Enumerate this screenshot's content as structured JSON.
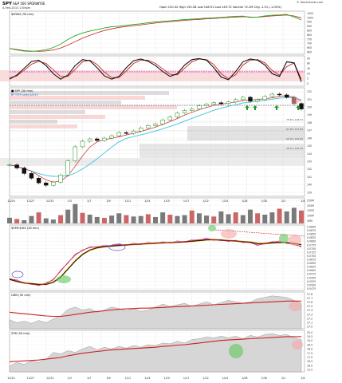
{
  "header": {
    "ticker": "SPY",
    "name": "S&P 500 SPDRs",
    "exchange": "NYSE",
    "date": "4-Feb-2013 2:06pm",
    "quote": "Open 150.32  High 150.58  Low 148.91  Last 149.72  Volume 72.2M  Chg -1.51 (-1.00%)",
    "credit": "© StockCharts.com"
  },
  "colors": {
    "price_up": "#1e8a1e",
    "price_down": "#111111",
    "ma_red": "#cc2222",
    "ma_cyan": "#3cc4dc",
    "ma_green": "#22aa22",
    "volume": "#7a7a7a",
    "volume_red": "#c66",
    "highlight_red": "#f4a7a7",
    "highlight_green": "#5cc85c",
    "highlight_blue": "#5555cc",
    "area_fill": "#d6d6d6",
    "zone_gray": "#cfcfcf",
    "zone_pink": "#f5c6c6"
  },
  "x_axis": {
    "labels": [
      "12/24",
      "12/27",
      "12/31",
      "1/3",
      "1/7",
      "1/9",
      "1/11",
      "1/14",
      "1/15",
      "1/17",
      "1/22",
      "1/24",
      "1/28",
      "1/30",
      "2/1",
      "2/4"
    ]
  },
  "chart_data": [
    {
      "type": "line",
      "panel": "$NYAD (30 min)",
      "ylim": [
        600,
        1050
      ],
      "tick_labels": [
        "1050",
        "1000",
        "950",
        "900",
        "850",
        "800",
        "750",
        "700",
        "650",
        "600"
      ],
      "series": [
        {
          "values": [
            640,
            622,
            608,
            606,
            612,
            625,
            652,
            690,
            745,
            790,
            822,
            845,
            862,
            880,
            895,
            902,
            912,
            922,
            930,
            942,
            952,
            958,
            965,
            972,
            980,
            985,
            990,
            996,
            1000,
            1005,
            1012,
            1018,
            1020,
            1005,
            1010,
            1022,
            1030,
            1034,
            1040,
            1010,
            975
          ]
        },
        {
          "values": [
            640,
            628,
            615,
            608,
            606,
            610,
            622,
            645,
            680,
            720,
            760,
            795,
            825,
            850,
            870,
            888,
            898,
            908,
            918,
            928,
            938,
            948,
            955,
            962,
            970,
            976,
            982,
            988,
            993,
            998,
            1004,
            1010,
            1014,
            1010,
            1008,
            1015,
            1022,
            1028,
            1032,
            1022,
            1000
          ]
        }
      ]
    },
    {
      "type": "line",
      "panel": "Stochastics",
      "ylim": [
        0,
        100
      ],
      "tick_labels": [
        "90",
        "80",
        "40",
        "20",
        "5",
        "0"
      ],
      "series": [
        {
          "values": [
            20,
            35,
            60,
            85,
            90,
            70,
            40,
            20,
            35,
            70,
            92,
            88,
            62,
            32,
            20,
            30,
            62,
            88,
            94,
            86,
            70,
            48,
            30,
            40,
            72,
            92,
            96,
            90,
            62,
            28,
            18,
            48,
            84,
            94,
            90,
            72,
            40,
            30,
            84,
            80,
            10
          ]
        },
        {
          "values": [
            25,
            32,
            52,
            75,
            86,
            78,
            54,
            30,
            30,
            56,
            84,
            90,
            74,
            46,
            26,
            26,
            50,
            78,
            90,
            90,
            78,
            58,
            38,
            36,
            60,
            84,
            94,
            92,
            74,
            40,
            22,
            36,
            72,
            90,
            92,
            80,
            52,
            34,
            66,
            80,
            20
          ]
        }
      ]
    },
    {
      "type": "candlestick",
      "panel": "SPY (30 min)",
      "legend": "■ SPY (30 min)",
      "legend2": "BY TSTV since 4/4/13",
      "ylim": [
        139,
        152
      ],
      "tick_labels": [
        "152",
        "151",
        "150",
        "149",
        "148",
        "147",
        "146",
        "145",
        "144",
        "143",
        "142",
        "141",
        "140",
        "139"
      ],
      "level_labels": [
        "78.6% 148.52",
        "61.8% 147.64",
        "50.0% 146.95",
        "38.2% 146.28"
      ],
      "values": [
        142.6,
        142.2,
        141.5,
        140.9,
        140.3,
        140.0,
        140.4,
        141.3,
        143.1,
        144.9,
        145.6,
        145.9,
        145.7,
        146.0,
        146.3,
        146.7,
        146.6,
        146.9,
        147.3,
        147.6,
        147.8,
        148.3,
        148.7,
        149.2,
        149.5,
        149.7,
        150.1,
        150.3,
        150.5,
        150.4,
        150.6,
        150.9,
        151.2,
        150.7,
        150.9,
        151.3,
        151.6,
        151.5,
        151.2,
        150.4,
        149.7
      ]
    },
    {
      "type": "bar",
      "panel": "Volume",
      "tick_labels": [
        "250M",
        "200M",
        "150M",
        "100M",
        "50M"
      ],
      "values": [
        62,
        48,
        35,
        80,
        120,
        55,
        42,
        90,
        150,
        210,
        115,
        95,
        70,
        60,
        85,
        110,
        90,
        75,
        80,
        100,
        70,
        120,
        95,
        80,
        90,
        140,
        110,
        85,
        75,
        130,
        100,
        120,
        90,
        150,
        110,
        95,
        120,
        160,
        130,
        170,
        140
      ]
    },
    {
      "type": "line",
      "panel": "$SPX:$VIX (30 min)",
      "ylim": [
        0.0475,
        0.089
      ],
      "tick_labels": [
        "0.0890",
        "0.0875",
        "0.0850",
        "0.0825",
        "0.0800",
        "0.0775",
        "0.0750",
        "0.0725",
        "0.0700",
        "0.0675",
        "0.0650",
        "0.0625",
        "0.0600",
        "0.0575",
        "0.0550",
        "0.0525",
        "0.0500",
        "0.0475"
      ],
      "series": [
        {
          "values": [
            0.054,
            0.0525,
            0.0512,
            0.05,
            0.0496,
            0.0505,
            0.0535,
            0.059,
            0.065,
            0.07,
            0.0735,
            0.0752,
            0.0758,
            0.0762,
            0.0766,
            0.077,
            0.0772,
            0.0775,
            0.0778,
            0.0781,
            0.0784,
            0.0785,
            0.0787,
            0.079,
            0.0794,
            0.08,
            0.0806,
            0.081,
            0.0806,
            0.08,
            0.0798,
            0.0795,
            0.079,
            0.0785,
            0.077,
            0.0778,
            0.0792,
            0.079,
            0.0784,
            0.0772,
            0.076
          ]
        },
        {
          "values": [
            0.0535,
            0.052,
            0.051,
            0.0505,
            0.05,
            0.05,
            0.0515,
            0.055,
            0.0605,
            0.066,
            0.0705,
            0.0735,
            0.075,
            0.0758,
            0.0762,
            0.0766,
            0.077,
            0.0773,
            0.0776,
            0.0779,
            0.0782,
            0.0784,
            0.0786,
            0.0788,
            0.0791,
            0.0795,
            0.08,
            0.0805,
            0.0806,
            0.0803,
            0.08,
            0.0797,
            0.0793,
            0.0789,
            0.078,
            0.0779,
            0.0784,
            0.0787,
            0.0786,
            0.078,
            0.0772
          ]
        }
      ]
    },
    {
      "type": "area",
      "panel": "UDN (30 min)",
      "ylim": [
        26.9,
        27.8
      ],
      "tick_labels": [
        "27.8",
        "27.7",
        "27.6",
        "27.5",
        "27.4",
        "27.3",
        "27.2",
        "27.1",
        "27.0"
      ],
      "series": [
        {
          "values": [
            27.1,
            27.02,
            27.06,
            27.0,
            27.08,
            27.02,
            27.12,
            27.2,
            27.38,
            27.44,
            27.36,
            27.4,
            27.3,
            27.36,
            27.44,
            27.4,
            27.34,
            27.4,
            27.32,
            27.36,
            27.44,
            27.52,
            27.46,
            27.5,
            27.54,
            27.46,
            27.52,
            27.58,
            27.5,
            27.56,
            27.62,
            27.58,
            27.54,
            27.58,
            27.66,
            27.7,
            27.74,
            27.72,
            27.7,
            27.62,
            27.54
          ]
        },
        {
          "values": [
            27.3,
            27.28,
            27.26,
            27.24,
            27.22,
            27.2,
            27.19,
            27.19,
            27.21,
            27.24,
            27.27,
            27.3,
            27.32,
            27.34,
            27.36,
            27.38,
            27.39,
            27.4,
            27.41,
            27.41,
            27.42,
            27.43,
            27.44,
            27.45,
            27.46,
            27.47,
            27.48,
            27.49,
            27.5,
            27.51,
            27.52,
            27.53,
            27.54,
            27.55,
            27.56,
            27.57,
            27.58,
            27.59,
            27.6,
            27.6,
            27.6
          ]
        }
      ]
    },
    {
      "type": "area",
      "panel": "ZFB (30 min)",
      "ylim": [
        15.5,
        20.0
      ],
      "tick_labels": [
        "20.0",
        "19.5",
        "19.0",
        "18.5",
        "18.0",
        "17.5",
        "17.0",
        "16.5",
        "16.0",
        "15.5"
      ],
      "series": [
        {
          "values": [
            16.0,
            16.4,
            16.2,
            16.6,
            16.4,
            16.8,
            17.6,
            17.4,
            17.8,
            17.6,
            18.0,
            18.3,
            17.9,
            18.2,
            18.0,
            18.3,
            18.1,
            18.4,
            18.2,
            18.5,
            18.4,
            18.7,
            18.6,
            18.9,
            18.7,
            19.1,
            19.2,
            19.4,
            19.3,
            19.5,
            19.3,
            19.5,
            19.2,
            19.6,
            19.4,
            19.7,
            19.8,
            19.6,
            19.7,
            19.3,
            19.1
          ]
        },
        {
          "values": [
            16.5,
            16.55,
            16.6,
            16.65,
            16.7,
            16.8,
            16.9,
            17.0,
            17.2,
            17.35,
            17.5,
            17.6,
            17.7,
            17.8,
            17.9,
            17.95,
            18.0,
            18.05,
            18.1,
            18.15,
            18.2,
            18.3,
            18.35,
            18.45,
            18.5,
            18.6,
            18.7,
            18.8,
            18.9,
            19.0,
            19.05,
            19.1,
            19.15,
            19.2,
            19.25,
            19.3,
            19.35,
            19.4,
            19.45,
            19.45,
            19.45
          ]
        }
      ]
    }
  ]
}
